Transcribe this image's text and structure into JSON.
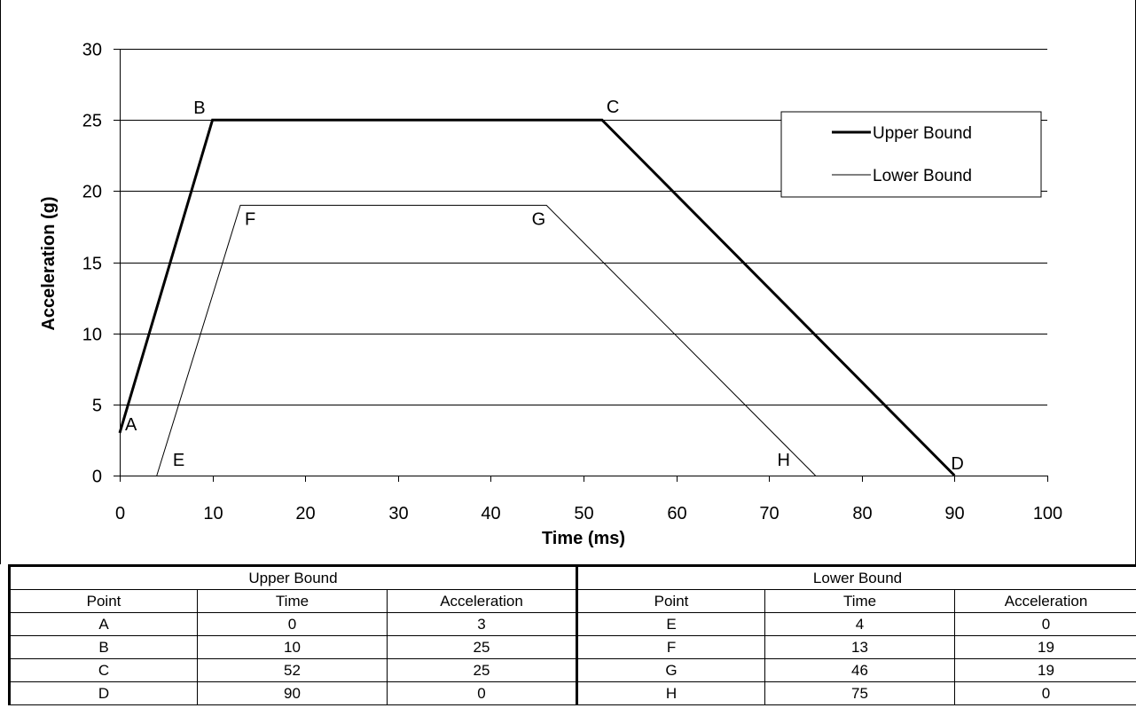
{
  "chart_data": {
    "type": "line",
    "xlabel": "Time (ms)",
    "ylabel": "Acceleration (g)",
    "xlim": [
      0,
      100
    ],
    "ylim": [
      0,
      30
    ],
    "xticks": [
      0,
      10,
      20,
      30,
      40,
      50,
      60,
      70,
      80,
      90,
      100
    ],
    "yticks": [
      0,
      5,
      10,
      15,
      20,
      25,
      30
    ],
    "grid": "horizontal",
    "legend_position": "top-right",
    "series": [
      {
        "name": "Upper Bound",
        "color": "#000000",
        "weight": "thick",
        "points": [
          {
            "label": "A",
            "x": 0,
            "y": 3
          },
          {
            "label": "B",
            "x": 10,
            "y": 25
          },
          {
            "label": "C",
            "x": 52,
            "y": 25
          },
          {
            "label": "D",
            "x": 90,
            "y": 0
          }
        ]
      },
      {
        "name": "Lower Bound",
        "color": "#000000",
        "weight": "thin",
        "points": [
          {
            "label": "E",
            "x": 4,
            "y": 0
          },
          {
            "label": "F",
            "x": 13,
            "y": 19
          },
          {
            "label": "G",
            "x": 46,
            "y": 19
          },
          {
            "label": "H",
            "x": 75,
            "y": 0
          }
        ]
      }
    ]
  },
  "table": {
    "groups": [
      "Upper Bound",
      "Lower Bound"
    ],
    "headers": [
      "Point",
      "Time",
      "Acceleration",
      "Point",
      "Time",
      "Acceleration"
    ],
    "rows": [
      [
        "A",
        "0",
        "3",
        "E",
        "4",
        "0"
      ],
      [
        "B",
        "10",
        "25",
        "F",
        "13",
        "19"
      ],
      [
        "C",
        "52",
        "25",
        "G",
        "46",
        "19"
      ],
      [
        "D",
        "90",
        "0",
        "H",
        "75",
        "0"
      ]
    ]
  }
}
